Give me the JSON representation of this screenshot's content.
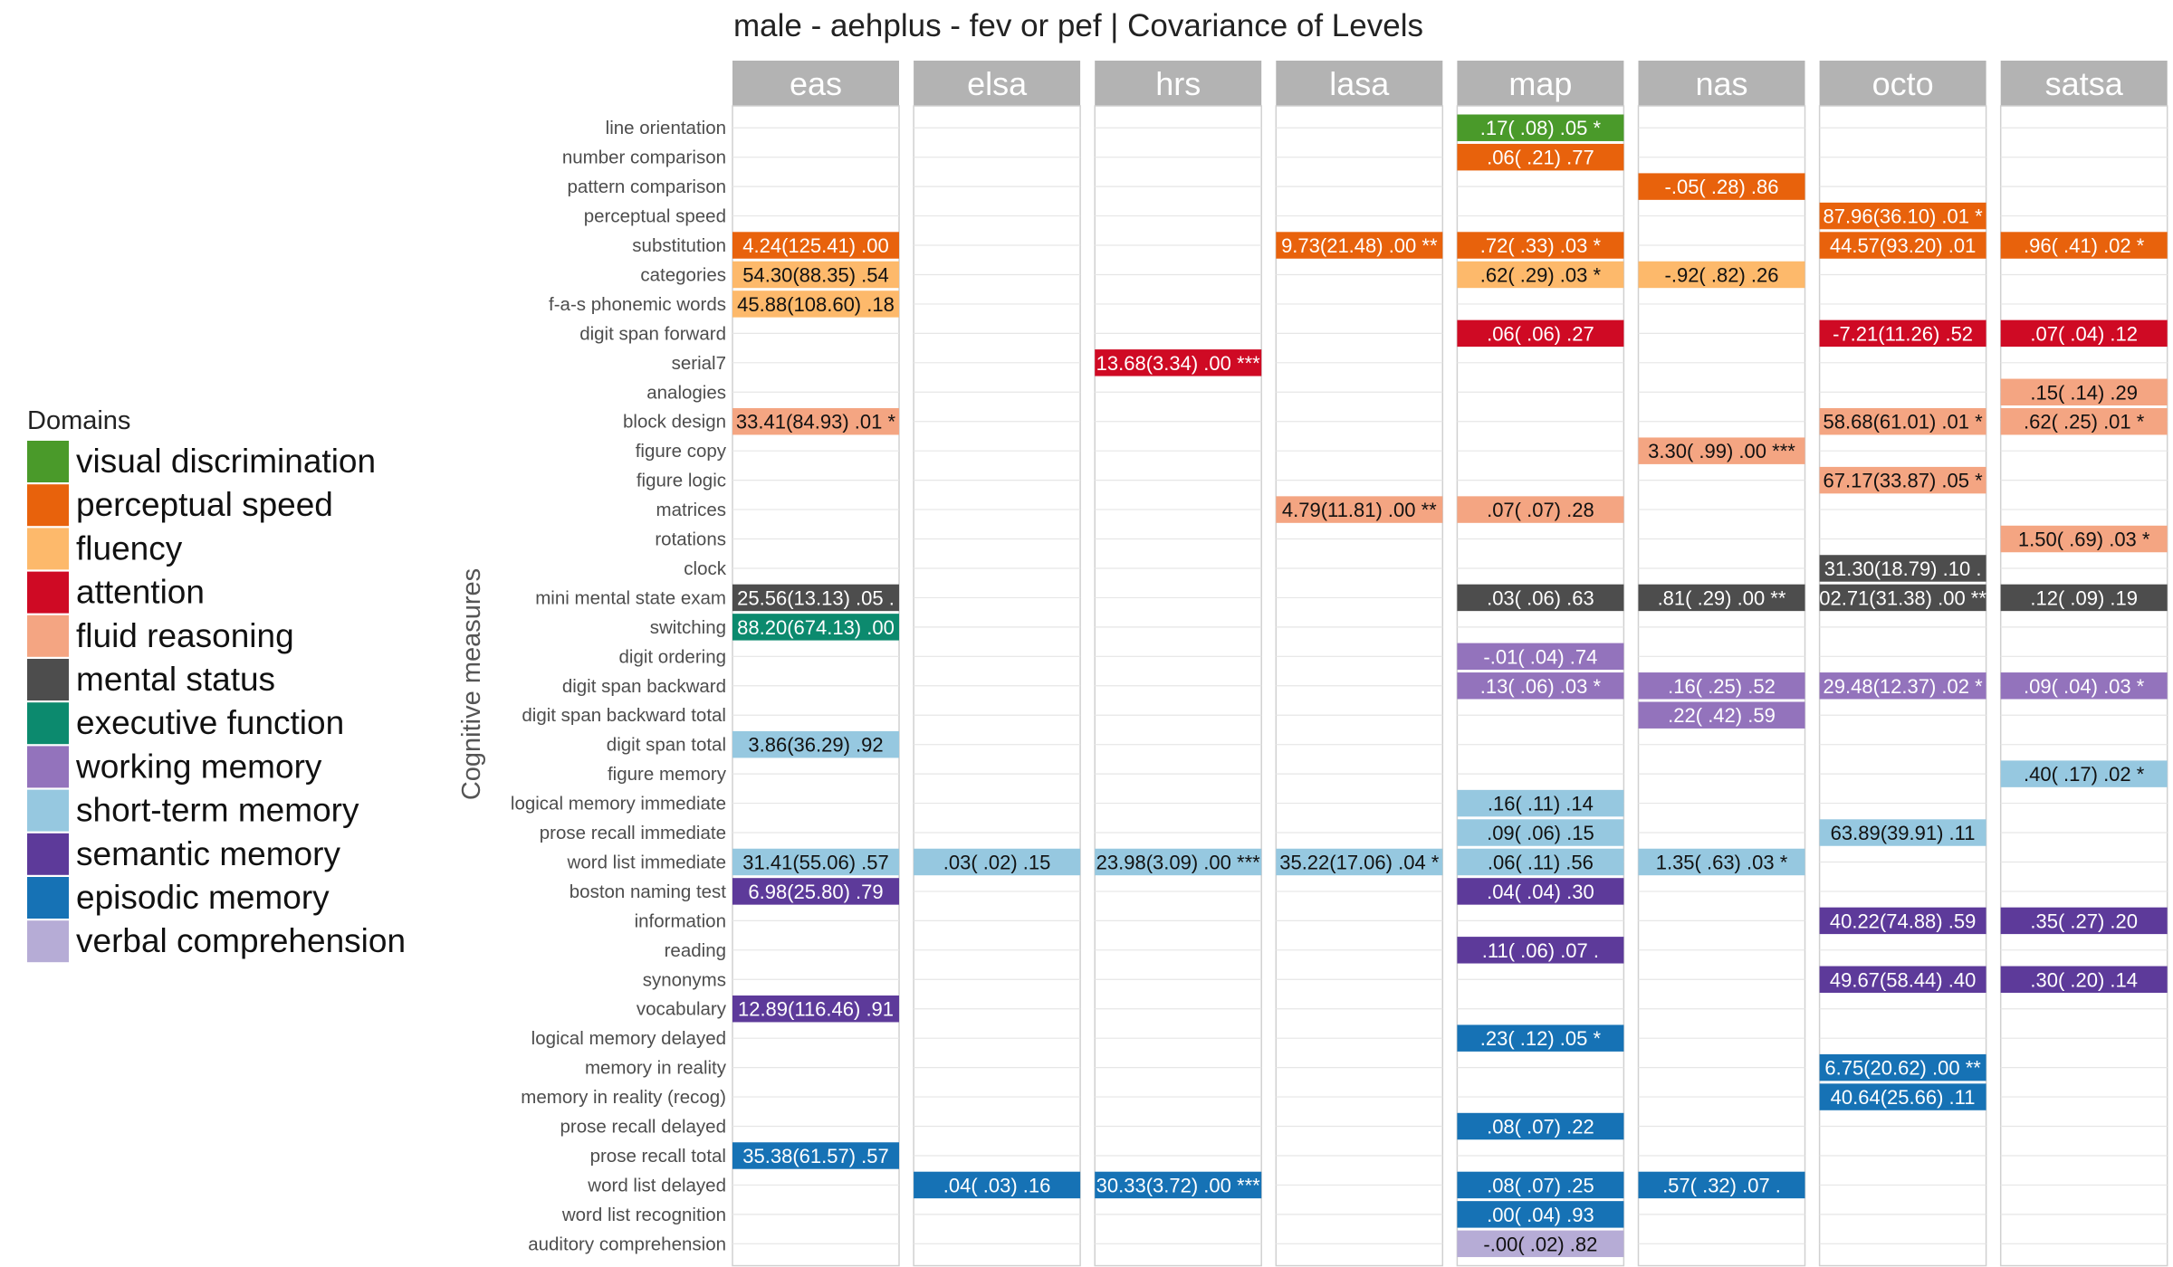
{
  "chart_data": {
    "type": "heatmap",
    "title": "male - aehplus - fev or pef | Covariance of Levels",
    "ylabel": "Cognitive measures",
    "legend": {
      "title": "Domains",
      "placement": "left",
      "items": [
        {
          "name": "visual discrimination",
          "color": "#4a9a2a"
        },
        {
          "name": "perceptual speed",
          "color": "#e8620c"
        },
        {
          "name": "fluency",
          "color": "#fdb96b"
        },
        {
          "name": "attention",
          "color": "#cf0a24"
        },
        {
          "name": "fluid reasoning",
          "color": "#f4a582"
        },
        {
          "name": "mental status",
          "color": "#4d4d4d"
        },
        {
          "name": "executive function",
          "color": "#0c8a6e"
        },
        {
          "name": "working memory",
          "color": "#9373bc"
        },
        {
          "name": "short-term memory",
          "color": "#96c8e0"
        },
        {
          "name": "semantic memory",
          "color": "#5d3a9a"
        },
        {
          "name": "episodic memory",
          "color": "#1672b5"
        },
        {
          "name": "verbal comprehension",
          "color": "#b6acd6"
        }
      ]
    },
    "studies": [
      "eas",
      "elsa",
      "hrs",
      "lasa",
      "map",
      "nas",
      "octo",
      "satsa"
    ],
    "measures": [
      "line orientation",
      "number comparison",
      "pattern comparison",
      "perceptual speed",
      "substitution",
      "categories",
      "f-a-s phonemic words",
      "digit span forward",
      "serial7",
      "analogies",
      "block design",
      "figure copy",
      "figure logic",
      "matrices",
      "rotations",
      "clock",
      "mini mental state exam",
      "switching",
      "digit ordering",
      "digit span backward",
      "digit span backward total",
      "digit span total",
      "figure memory",
      "logical memory immediate",
      "prose recall immediate",
      "word list immediate",
      "boston naming test",
      "information",
      "reading",
      "synonyms",
      "vocabulary",
      "logical memory delayed",
      "memory in reality",
      "memory in reality (recog)",
      "prose recall delayed",
      "prose recall total",
      "word list delayed",
      "word list recognition",
      "auditory comprehension"
    ],
    "cells": [
      {
        "study": "eas",
        "measure": "substitution",
        "domain": "perceptual speed",
        "label": "4.24(125.41) .00"
      },
      {
        "study": "eas",
        "measure": "categories",
        "domain": "fluency",
        "label": "54.30(88.35) .54"
      },
      {
        "study": "eas",
        "measure": "f-a-s phonemic words",
        "domain": "fluency",
        "label": "45.88(108.60) .18"
      },
      {
        "study": "eas",
        "measure": "block design",
        "domain": "fluid reasoning",
        "label": "33.41(84.93) .01 *"
      },
      {
        "study": "eas",
        "measure": "mini mental state exam",
        "domain": "mental status",
        "label": "25.56(13.13) .05 ."
      },
      {
        "study": "eas",
        "measure": "switching",
        "domain": "executive function",
        "label": "88.20(674.13) .00"
      },
      {
        "study": "eas",
        "measure": "digit span total",
        "domain": "short-term memory",
        "label": "3.86(36.29) .92"
      },
      {
        "study": "eas",
        "measure": "word list immediate",
        "domain": "short-term memory",
        "label": "31.41(55.06) .57"
      },
      {
        "study": "eas",
        "measure": "boston naming test",
        "domain": "semantic memory",
        "label": "6.98(25.80) .79"
      },
      {
        "study": "eas",
        "measure": "vocabulary",
        "domain": "semantic memory",
        "label": "12.89(116.46) .91"
      },
      {
        "study": "eas",
        "measure": "prose recall total",
        "domain": "episodic memory",
        "label": "35.38(61.57) .57"
      },
      {
        "study": "elsa",
        "measure": "word list immediate",
        "domain": "short-term memory",
        "label": ".03( .02) .15"
      },
      {
        "study": "elsa",
        "measure": "word list delayed",
        "domain": "episodic memory",
        "label": ".04( .03) .16"
      },
      {
        "study": "hrs",
        "measure": "serial7",
        "domain": "attention",
        "label": "13.68(3.34) .00 ***"
      },
      {
        "study": "hrs",
        "measure": "word list immediate",
        "domain": "short-term memory",
        "label": "23.98(3.09) .00 ***"
      },
      {
        "study": "hrs",
        "measure": "word list delayed",
        "domain": "episodic memory",
        "label": "30.33(3.72) .00 ***"
      },
      {
        "study": "lasa",
        "measure": "substitution",
        "domain": "perceptual speed",
        "label": "9.73(21.48) .00 **"
      },
      {
        "study": "lasa",
        "measure": "matrices",
        "domain": "fluid reasoning",
        "label": "4.79(11.81) .00 **"
      },
      {
        "study": "lasa",
        "measure": "word list immediate",
        "domain": "short-term memory",
        "label": "35.22(17.06) .04 *"
      },
      {
        "study": "map",
        "measure": "line orientation",
        "domain": "visual discrimination",
        "label": ".17( .08) .05 *"
      },
      {
        "study": "map",
        "measure": "number comparison",
        "domain": "perceptual speed",
        "label": ".06( .21) .77"
      },
      {
        "study": "map",
        "measure": "substitution",
        "domain": "perceptual speed",
        "label": ".72( .33) .03 *"
      },
      {
        "study": "map",
        "measure": "categories",
        "domain": "fluency",
        "label": ".62( .29) .03 *"
      },
      {
        "study": "map",
        "measure": "digit span forward",
        "domain": "attention",
        "label": ".06( .06) .27"
      },
      {
        "study": "map",
        "measure": "matrices",
        "domain": "fluid reasoning",
        "label": ".07( .07) .28"
      },
      {
        "study": "map",
        "measure": "mini mental state exam",
        "domain": "mental status",
        "label": ".03( .06) .63"
      },
      {
        "study": "map",
        "measure": "digit ordering",
        "domain": "working memory",
        "label": "-.01( .04) .74"
      },
      {
        "study": "map",
        "measure": "digit span backward",
        "domain": "working memory",
        "label": ".13( .06) .03 *"
      },
      {
        "study": "map",
        "measure": "logical memory immediate",
        "domain": "short-term memory",
        "label": ".16( .11) .14"
      },
      {
        "study": "map",
        "measure": "prose recall immediate",
        "domain": "short-term memory",
        "label": ".09( .06) .15"
      },
      {
        "study": "map",
        "measure": "word list immediate",
        "domain": "short-term memory",
        "label": ".06( .11) .56"
      },
      {
        "study": "map",
        "measure": "boston naming test",
        "domain": "semantic memory",
        "label": ".04( .04) .30"
      },
      {
        "study": "map",
        "measure": "reading",
        "domain": "semantic memory",
        "label": ".11( .06) .07 ."
      },
      {
        "study": "map",
        "measure": "logical memory delayed",
        "domain": "episodic memory",
        "label": ".23( .12) .05 *"
      },
      {
        "study": "map",
        "measure": "prose recall delayed",
        "domain": "episodic memory",
        "label": ".08( .07) .22"
      },
      {
        "study": "map",
        "measure": "word list delayed",
        "domain": "episodic memory",
        "label": ".08( .07) .25"
      },
      {
        "study": "map",
        "measure": "word list recognition",
        "domain": "episodic memory",
        "label": ".00( .04) .93"
      },
      {
        "study": "map",
        "measure": "auditory comprehension",
        "domain": "verbal comprehension",
        "label": "-.00( .02) .82"
      },
      {
        "study": "nas",
        "measure": "pattern comparison",
        "domain": "perceptual speed",
        "label": "-.05( .28) .86"
      },
      {
        "study": "nas",
        "measure": "categories",
        "domain": "fluency",
        "label": "-.92( .82) .26"
      },
      {
        "study": "nas",
        "measure": "figure copy",
        "domain": "fluid reasoning",
        "label": "3.30( .99) .00 ***"
      },
      {
        "study": "nas",
        "measure": "mini mental state exam",
        "domain": "mental status",
        "label": ".81( .29) .00 **"
      },
      {
        "study": "nas",
        "measure": "digit span backward",
        "domain": "working memory",
        "label": ".16( .25) .52"
      },
      {
        "study": "nas",
        "measure": "digit span backward total",
        "domain": "working memory",
        "label": ".22( .42) .59"
      },
      {
        "study": "nas",
        "measure": "word list immediate",
        "domain": "short-term memory",
        "label": "1.35( .63) .03 *"
      },
      {
        "study": "nas",
        "measure": "word list delayed",
        "domain": "episodic memory",
        "label": ".57( .32) .07 ."
      },
      {
        "study": "octo",
        "measure": "perceptual speed",
        "domain": "perceptual speed",
        "label": "87.96(36.10) .01 *"
      },
      {
        "study": "octo",
        "measure": "substitution",
        "domain": "perceptual speed",
        "label": "44.57(93.20) .01"
      },
      {
        "study": "octo",
        "measure": "digit span forward",
        "domain": "attention",
        "label": "-7.21(11.26) .52"
      },
      {
        "study": "octo",
        "measure": "block design",
        "domain": "fluid reasoning",
        "label": "58.68(61.01) .01 *"
      },
      {
        "study": "octo",
        "measure": "figure logic",
        "domain": "fluid reasoning",
        "label": "67.17(33.87) .05 *"
      },
      {
        "study": "octo",
        "measure": "clock",
        "domain": "mental status",
        "label": "31.30(18.79) .10 ."
      },
      {
        "study": "octo",
        "measure": "mini mental state exam",
        "domain": "mental status",
        "label": "02.71(31.38) .00 **"
      },
      {
        "study": "octo",
        "measure": "digit span backward",
        "domain": "working memory",
        "label": "29.48(12.37) .02 *"
      },
      {
        "study": "octo",
        "measure": "prose recall immediate",
        "domain": "short-term memory",
        "label": "63.89(39.91) .11"
      },
      {
        "study": "octo",
        "measure": "information",
        "domain": "semantic memory",
        "label": "40.22(74.88) .59"
      },
      {
        "study": "octo",
        "measure": "synonyms",
        "domain": "semantic memory",
        "label": "49.67(58.44) .40"
      },
      {
        "study": "octo",
        "measure": "memory in reality",
        "domain": "episodic memory",
        "label": "6.75(20.62) .00 **"
      },
      {
        "study": "octo",
        "measure": "memory in reality (recog)",
        "domain": "episodic memory",
        "label": "40.64(25.66) .11"
      },
      {
        "study": "satsa",
        "measure": "substitution",
        "domain": "perceptual speed",
        "label": ".96( .41) .02 *"
      },
      {
        "study": "satsa",
        "measure": "digit span forward",
        "domain": "attention",
        "label": ".07( .04) .12"
      },
      {
        "study": "satsa",
        "measure": "analogies",
        "domain": "fluid reasoning",
        "label": ".15( .14) .29"
      },
      {
        "study": "satsa",
        "measure": "block design",
        "domain": "fluid reasoning",
        "label": ".62( .25) .01 *"
      },
      {
        "study": "satsa",
        "measure": "rotations",
        "domain": "fluid reasoning",
        "label": "1.50( .69) .03 *"
      },
      {
        "study": "satsa",
        "measure": "mini mental state exam",
        "domain": "mental status",
        "label": ".12( .09) .19"
      },
      {
        "study": "satsa",
        "measure": "digit span backward",
        "domain": "working memory",
        "label": ".09( .04) .03 *"
      },
      {
        "study": "satsa",
        "measure": "figure memory",
        "domain": "short-term memory",
        "label": ".40( .17) .02 *"
      },
      {
        "study": "satsa",
        "measure": "information",
        "domain": "semantic memory",
        "label": ".35( .27) .20"
      },
      {
        "study": "satsa",
        "measure": "synonyms",
        "domain": "semantic memory",
        "label": ".30( .20) .14"
      }
    ]
  }
}
